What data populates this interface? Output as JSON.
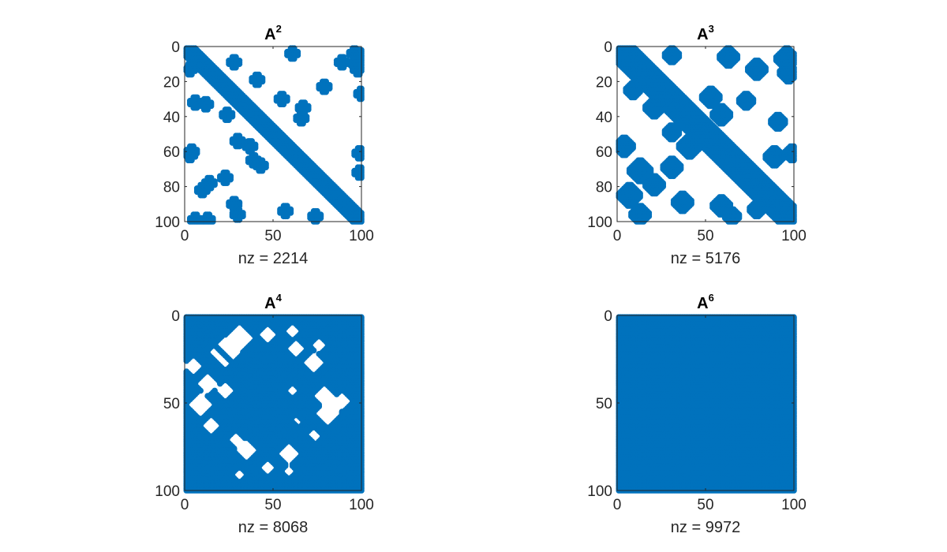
{
  "figure": {
    "background": "#ffffff"
  },
  "chart_data": [
    {
      "type": "scatter",
      "title": "A",
      "title_power": "2",
      "xlabel": "nz = 2214",
      "nz": 2214,
      "matrix_size": 100,
      "xlim": [
        0,
        100
      ],
      "ylim": [
        0,
        100
      ],
      "y_reversed": true,
      "xticks": [
        "0",
        "50",
        "100"
      ],
      "yticks": [
        "0",
        "20",
        "40",
        "60",
        "80",
        "100"
      ],
      "marker_color": "#0072BD",
      "pattern": {
        "diagonal_band_halfwidth": 5,
        "crosses": [
          [
            3,
            60
          ],
          [
            3,
            95
          ],
          [
            4,
            99
          ],
          [
            8,
            27
          ],
          [
            8,
            88
          ],
          [
            9,
            96
          ],
          [
            12,
            2
          ],
          [
            12,
            97
          ],
          [
            18,
            40
          ],
          [
            22,
            78
          ],
          [
            26,
            99
          ],
          [
            29,
            54
          ],
          [
            31,
            5
          ],
          [
            32,
            11
          ],
          [
            34,
            66
          ],
          [
            38,
            23
          ],
          [
            40,
            65
          ],
          [
            53,
            29
          ],
          [
            56,
            36
          ],
          [
            59,
            3
          ],
          [
            60,
            98
          ],
          [
            61,
            2
          ],
          [
            64,
            38
          ],
          [
            67,
            42
          ],
          [
            71,
            98
          ],
          [
            74,
            22
          ],
          [
            77,
            13
          ],
          [
            81,
            9
          ],
          [
            89,
            27
          ],
          [
            93,
            56
          ],
          [
            95,
            29
          ],
          [
            96,
            73
          ],
          [
            98,
            5
          ],
          [
            98,
            12
          ]
        ]
      }
    },
    {
      "type": "scatter",
      "title": "A",
      "title_power": "3",
      "xlabel": "nz = 5176",
      "nz": 5176,
      "matrix_size": 100,
      "xlim": [
        0,
        100
      ],
      "ylim": [
        0,
        100
      ],
      "y_reversed": true,
      "xticks": [
        "0",
        "50",
        "100"
      ],
      "yticks": [
        "0",
        "20",
        "40",
        "60",
        "80",
        "100"
      ],
      "marker_color": "#0072BD",
      "pattern": {
        "diagonal_band_halfwidth": 9,
        "blobs": [
          [
            3,
            5,
            4
          ],
          [
            4,
            30,
            4
          ],
          [
            5,
            62,
            5
          ],
          [
            6,
            95,
            6
          ],
          [
            10,
            12,
            4
          ],
          [
            12,
            78,
            5
          ],
          [
            14,
            96,
            5
          ],
          [
            24,
            8,
            4
          ],
          [
            28,
            52,
            5
          ],
          [
            30,
            72,
            4
          ],
          [
            34,
            20,
            5
          ],
          [
            38,
            58,
            5
          ],
          [
            42,
            90,
            4
          ],
          [
            48,
            30,
            4
          ],
          [
            56,
            3,
            5
          ],
          [
            56,
            40,
            6
          ],
          [
            60,
            98,
            4
          ],
          [
            62,
            88,
            5
          ],
          [
            68,
            30,
            5
          ],
          [
            70,
            12,
            6
          ],
          [
            78,
            20,
            5
          ],
          [
            84,
            6,
            6
          ],
          [
            88,
            36,
            5
          ],
          [
            90,
            58,
            5
          ],
          [
            92,
            78,
            4
          ],
          [
            95,
            12,
            5
          ],
          [
            96,
            95,
            5
          ],
          [
            96,
            64,
            4
          ]
        ]
      }
    },
    {
      "type": "scatter",
      "title": "A",
      "title_power": "4",
      "xlabel": "nz = 8068",
      "nz": 8068,
      "matrix_size": 100,
      "xlim": [
        0,
        100
      ],
      "ylim": [
        0,
        100
      ],
      "y_reversed": true,
      "xticks": [
        "0",
        "50",
        "100"
      ],
      "yticks": [
        "0",
        "50",
        "100"
      ],
      "marker_color": "#0072BD",
      "pattern": {
        "holes": [
          [
            12,
            30,
            8
          ],
          [
            20,
            22,
            9
          ],
          [
            10,
            46,
            5
          ],
          [
            28,
            4,
            5
          ],
          [
            38,
            12,
            6
          ],
          [
            50,
            8,
            7
          ],
          [
            42,
            22,
            5
          ],
          [
            8,
            60,
            4
          ],
          [
            18,
            62,
            5
          ],
          [
            26,
            72,
            6
          ],
          [
            16,
            75,
            4
          ],
          [
            45,
            78,
            6
          ],
          [
            55,
            80,
            7
          ],
          [
            48,
            88,
            5
          ],
          [
            42,
            60,
            3
          ],
          [
            62,
            14,
            5
          ],
          [
            70,
            28,
            4
          ],
          [
            76,
            34,
            6
          ],
          [
            68,
            72,
            4
          ],
          [
            78,
            58,
            6
          ],
          [
            86,
            46,
            4
          ],
          [
            88,
            58,
            3
          ],
          [
            60,
            62,
            3
          ],
          [
            90,
            30,
            3
          ]
        ]
      }
    },
    {
      "type": "scatter",
      "title": "A",
      "title_power": "6",
      "xlabel": "nz = 9972",
      "nz": 9972,
      "matrix_size": 100,
      "xlim": [
        0,
        100
      ],
      "ylim": [
        0,
        100
      ],
      "y_reversed": true,
      "xticks": [
        "0",
        "50",
        "100"
      ],
      "yticks": [
        "0",
        "50",
        "100"
      ],
      "marker_color": "#0072BD",
      "pattern": {
        "fill": "full"
      }
    }
  ]
}
